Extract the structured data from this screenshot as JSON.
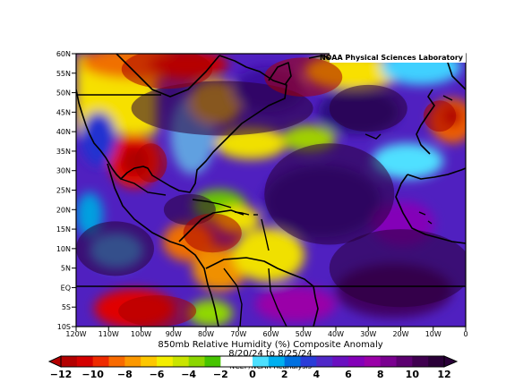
{
  "map": {
    "credit": "NOAA Physical Sciences Laboratory",
    "title": "850mb Relative Humidity (%) Composite Anomaly",
    "dates": "8/20/24 to 8/25/24",
    "source": "NCEP/NCAR Reanalysis",
    "lat_labels": [
      "60N",
      "55N",
      "50N",
      "45N",
      "40N",
      "35N",
      "30N",
      "25N",
      "20N",
      "15N",
      "10N",
      "5N",
      "EQ",
      "5S",
      "10S"
    ],
    "lon_labels": [
      "120W",
      "110W",
      "100W",
      "90W",
      "80W",
      "70W",
      "60W",
      "50W",
      "40W",
      "30W",
      "20W",
      "10W",
      "0"
    ],
    "lat_range": [
      -10,
      60
    ],
    "lon_range": [
      -120,
      0
    ],
    "colorbar": {
      "ticks": [
        "-12",
        "-10",
        "-8",
        "-6",
        "-4",
        "-2",
        "0",
        "2",
        "4",
        "6",
        "8",
        "10",
        "12"
      ],
      "colors": [
        "#b30000",
        "#d40000",
        "#ee2a00",
        "#f86a00",
        "#fb9800",
        "#fdc700",
        "#f3ee00",
        "#c9e400",
        "#8cd600",
        "#46c400",
        "#ffffff",
        "#ffffff",
        "#4de0ff",
        "#00b0f0",
        "#0070e0",
        "#2a3cd8",
        "#5028c8",
        "#6a10c0",
        "#8400b8",
        "#9a00a8",
        "#7a0090",
        "#5c0070",
        "#400050",
        "#2a0038"
      ]
    },
    "regions": [
      {
        "kind": "moist",
        "lon": -75,
        "lat": 46,
        "rx": 28,
        "ry": 7
      },
      {
        "kind": "moist",
        "lon": -42,
        "lat": 24,
        "rx": 20,
        "ry": 13
      },
      {
        "kind": "moist",
        "lon": -20,
        "lat": 5,
        "rx": 22,
        "ry": 10
      },
      {
        "kind": "moist",
        "lon": -108,
        "lat": 10,
        "rx": 12,
        "ry": 7
      },
      {
        "kind": "moist",
        "lon": -30,
        "lat": 46,
        "rx": 12,
        "ry": 6
      },
      {
        "kind": "moist",
        "lon": -85,
        "lat": 20,
        "rx": 8,
        "ry": 4
      },
      {
        "kind": "dry",
        "lon": -92,
        "lat": 56,
        "rx": 14,
        "ry": 5
      },
      {
        "kind": "dry",
        "lon": -97,
        "lat": 32,
        "rx": 5,
        "ry": 5
      },
      {
        "kind": "dry",
        "lon": -78,
        "lat": 14,
        "rx": 9,
        "ry": 5
      },
      {
        "kind": "dry",
        "lon": -95,
        "lat": -6,
        "rx": 12,
        "ry": 4
      },
      {
        "kind": "dry",
        "lon": -50,
        "lat": 54,
        "rx": 12,
        "ry": 5
      },
      {
        "kind": "dry",
        "lon": -8,
        "lat": 44,
        "rx": 5,
        "ry": 4
      }
    ]
  }
}
